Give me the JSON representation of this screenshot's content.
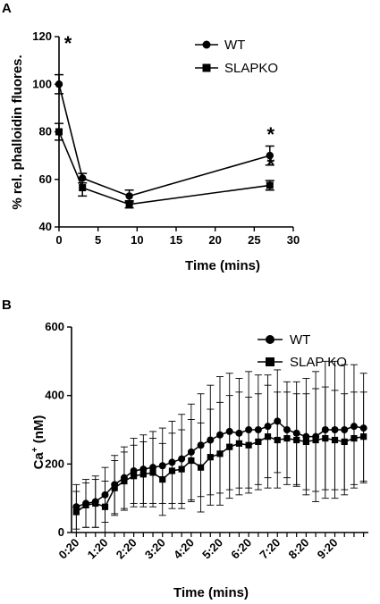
{
  "chart_data": [
    {
      "panel": "A",
      "type": "line",
      "xlabel": "Time (mins)",
      "ylabel": "% rel. phalloidin  fluores.",
      "xlim": [
        0,
        30
      ],
      "ylim": [
        40,
        120
      ],
      "xticks": [
        0,
        5,
        10,
        15,
        20,
        25,
        30
      ],
      "yticks": [
        40,
        60,
        80,
        100,
        120
      ],
      "x": [
        0,
        3,
        9,
        27
      ],
      "series": [
        {
          "name": "WT",
          "marker": "circle",
          "values": [
            100,
            60.5,
            53,
            70
          ],
          "errors": [
            4,
            2,
            2.5,
            4
          ]
        },
        {
          "name": "SLAPKO",
          "marker": "square",
          "values": [
            80,
            56.5,
            49.5,
            57.5
          ],
          "errors": [
            3.5,
            3.5,
            1.5,
            2
          ]
        }
      ],
      "annotations": [
        {
          "text": "*",
          "x": 0
        },
        {
          "text": "*",
          "x": 27
        },
        {
          "text": "*",
          "x": 27
        }
      ],
      "legend": "top-right",
      "grid": false
    },
    {
      "panel": "B",
      "type": "line",
      "xlabel": "Time (mins)",
      "ylabel": "Ca+ (nM)",
      "ylabel_main": "Ca",
      "ylabel_sup": "+",
      "ylabel_unit": " (nM)",
      "ylim": [
        0,
        600
      ],
      "yticks": [
        0,
        200,
        400,
        600
      ],
      "xtick_labels": [
        "0:20",
        "1:20",
        "2:20",
        "3:20",
        "4:20",
        "5:20",
        "6:20",
        "7:20",
        "8:20",
        "9:20"
      ],
      "x_seconds": [
        20,
        40,
        60,
        80,
        100,
        120,
        140,
        160,
        180,
        200,
        220,
        240,
        260,
        280,
        300,
        320,
        340,
        360,
        380,
        400,
        420,
        440,
        460,
        480,
        500,
        520,
        540,
        560,
        580,
        600,
        620
      ],
      "series": [
        {
          "name": "WT",
          "marker": "circle",
          "values": [
            75,
            85,
            90,
            110,
            140,
            160,
            180,
            185,
            190,
            195,
            205,
            215,
            235,
            255,
            270,
            285,
            295,
            290,
            300,
            300,
            310,
            325,
            300,
            290,
            280,
            280,
            300,
            300,
            300,
            310,
            305
          ],
          "errors": [
            65,
            70,
            75,
            80,
            85,
            90,
            95,
            100,
            105,
            110,
            120,
            130,
            140,
            150,
            160,
            170,
            170,
            160,
            170,
            160,
            150,
            150,
            140,
            150,
            170,
            190,
            200,
            200,
            190,
            180,
            160
          ]
        },
        {
          "name": "SLAP KO",
          "marker": "square",
          "values": [
            60,
            80,
            85,
            75,
            130,
            150,
            165,
            170,
            175,
            155,
            180,
            185,
            210,
            190,
            220,
            230,
            250,
            260,
            255,
            265,
            280,
            270,
            275,
            270,
            265,
            270,
            275,
            270,
            265,
            275,
            280
          ],
          "errors": [
            60,
            65,
            70,
            75,
            80,
            85,
            90,
            95,
            100,
            105,
            110,
            115,
            120,
            130,
            140,
            150,
            150,
            150,
            140,
            140,
            150,
            140,
            135,
            135,
            140,
            150,
            150,
            145,
            140,
            135,
            130
          ]
        }
      ],
      "legend": "top-right",
      "grid": false
    }
  ]
}
